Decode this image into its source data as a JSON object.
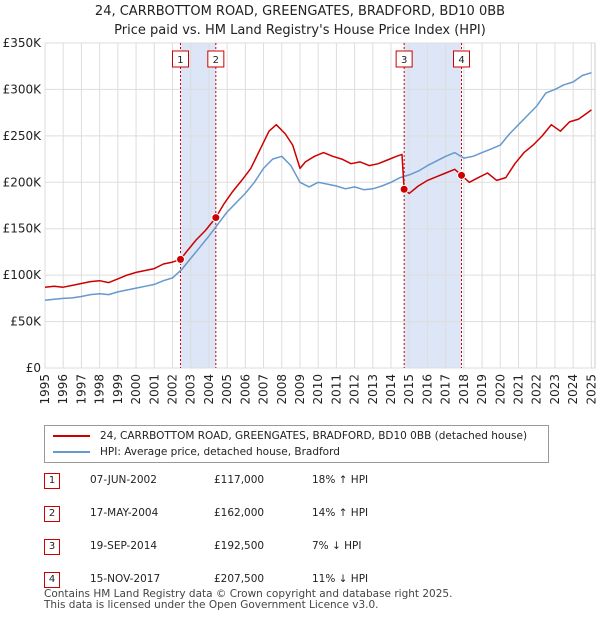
{
  "title_line1": "24, CARRBOTTOM ROAD, GREENGATES, BRADFORD, BD10 0BB",
  "title_line2": "Price paid vs. HM Land Registry's House Price Index (HPI)",
  "colors": {
    "property": "#cc0000",
    "hpi": "#6699cc",
    "shade": "#dde6f6",
    "grid": "#dddddd"
  },
  "chart_data": {
    "type": "line",
    "x_range": [
      1995,
      2025.2
    ],
    "ylim": [
      0,
      350000
    ],
    "y_ticks": [
      0,
      50000,
      100000,
      150000,
      200000,
      250000,
      300000,
      350000
    ],
    "y_tick_labels": [
      "£0",
      "£50K",
      "£100K",
      "£150K",
      "£200K",
      "£250K",
      "£300K",
      "£350K"
    ],
    "x_ticks": [
      1995,
      1996,
      1997,
      1998,
      1999,
      2000,
      2001,
      2002,
      2003,
      2004,
      2005,
      2006,
      2007,
      2008,
      2009,
      2010,
      2011,
      2012,
      2013,
      2014,
      2015,
      2016,
      2017,
      2018,
      2019,
      2020,
      2021,
      2022,
      2023,
      2024,
      2025
    ],
    "series": [
      {
        "name": "24, CARRBOTTOM ROAD, GREENGATES, BRADFORD, BD10 0BB (detached house)",
        "color": "#cc0000",
        "x": [
          1995,
          1995.5,
          1996,
          1996.5,
          1997,
          1997.5,
          1998,
          1998.5,
          1999,
          1999.5,
          2000,
          2000.5,
          2001,
          2001.5,
          2002,
          2002.44,
          2002.8,
          2003.3,
          2003.8,
          2004.38,
          2004.8,
          2005.3,
          2005.8,
          2006.3,
          2006.8,
          2007.3,
          2007.7,
          2008.2,
          2008.6,
          2009.0,
          2009.3,
          2009.8,
          2010.3,
          2010.8,
          2011.3,
          2011.8,
          2012.3,
          2012.8,
          2013.3,
          2013.8,
          2014.3,
          2014.6,
          2014.72,
          2015.0,
          2015.5,
          2016.0,
          2016.5,
          2017.0,
          2017.5,
          2017.87,
          2018.3,
          2018.8,
          2019.3,
          2019.8,
          2020.3,
          2020.8,
          2021.3,
          2021.8,
          2022.3,
          2022.8,
          2023.3,
          2023.8,
          2024.3,
          2024.8,
          2025.0
        ],
        "y": [
          87000,
          88000,
          87000,
          89000,
          91000,
          93000,
          94000,
          92000,
          96000,
          100000,
          103000,
          105000,
          107000,
          112000,
          114000,
          117000,
          126000,
          138000,
          148000,
          162000,
          176000,
          190000,
          202000,
          215000,
          235000,
          255000,
          262000,
          252000,
          240000,
          215000,
          222000,
          228000,
          232000,
          228000,
          225000,
          220000,
          222000,
          218000,
          220000,
          224000,
          228000,
          230000,
          192500,
          188000,
          196000,
          202000,
          206000,
          210000,
          214000,
          207500,
          200000,
          205000,
          210000,
          202000,
          205000,
          220000,
          232000,
          240000,
          250000,
          262000,
          255000,
          265000,
          268000,
          275000,
          278000
        ]
      },
      {
        "name": "HPI: Average price, detached house, Bradford",
        "color": "#6699cc",
        "x": [
          1995,
          1995.5,
          1996,
          1996.5,
          1997,
          1997.5,
          1998,
          1998.5,
          1999,
          1999.5,
          2000,
          2000.5,
          2001,
          2001.5,
          2002,
          2002.5,
          2003,
          2003.5,
          2004,
          2004.5,
          2005,
          2005.5,
          2006,
          2006.5,
          2007,
          2007.5,
          2008,
          2008.5,
          2009,
          2009.5,
          2010,
          2010.5,
          2011,
          2011.5,
          2012,
          2012.5,
          2013,
          2013.5,
          2014,
          2014.5,
          2015,
          2015.5,
          2016,
          2016.5,
          2017,
          2017.5,
          2018,
          2018.5,
          2019,
          2019.5,
          2020,
          2020.5,
          2021,
          2021.5,
          2022,
          2022.5,
          2023,
          2023.5,
          2024,
          2024.5,
          2025
        ],
        "y": [
          73000,
          74000,
          75000,
          75500,
          77000,
          79000,
          80000,
          79000,
          82000,
          84000,
          86000,
          88000,
          90000,
          94000,
          97000,
          106000,
          118000,
          130000,
          142000,
          155000,
          168000,
          178000,
          188000,
          200000,
          215000,
          225000,
          228000,
          218000,
          200000,
          195000,
          200000,
          198000,
          196000,
          193000,
          195000,
          192000,
          193000,
          196000,
          200000,
          205000,
          208000,
          212000,
          218000,
          223000,
          228000,
          232000,
          226000,
          228000,
          232000,
          236000,
          240000,
          252000,
          262000,
          272000,
          282000,
          296000,
          300000,
          305000,
          308000,
          315000,
          318000
        ]
      }
    ],
    "sales": [
      {
        "label": "1",
        "x": 2002.44,
        "price": 117000
      },
      {
        "label": "2",
        "x": 2004.38,
        "price": 162000
      },
      {
        "label": "3",
        "x": 2014.72,
        "price": 192500
      },
      {
        "label": "4",
        "x": 2017.87,
        "price": 207500
      }
    ],
    "shaded_spans": [
      [
        2002.44,
        2004.38
      ],
      [
        2014.72,
        2017.87
      ]
    ]
  },
  "legend": {
    "property_label": "24, CARRBOTTOM ROAD, GREENGATES, BRADFORD, BD10 0BB (detached house)",
    "hpi_label": "HPI: Average price, detached house, Bradford"
  },
  "transactions": [
    {
      "num": "1",
      "date": "07-JUN-2002",
      "price": "£117,000",
      "hpi": "18% ↑ HPI"
    },
    {
      "num": "2",
      "date": "17-MAY-2004",
      "price": "£162,000",
      "hpi": "14% ↑ HPI"
    },
    {
      "num": "3",
      "date": "19-SEP-2014",
      "price": "£192,500",
      "hpi": "7% ↓ HPI"
    },
    {
      "num": "4",
      "date": "15-NOV-2017",
      "price": "£207,500",
      "hpi": "11% ↓ HPI"
    }
  ],
  "footer_line1": "Contains HM Land Registry data © Crown copyright and database right 2025.",
  "footer_line2": "This data is licensed under the Open Government Licence v3.0."
}
